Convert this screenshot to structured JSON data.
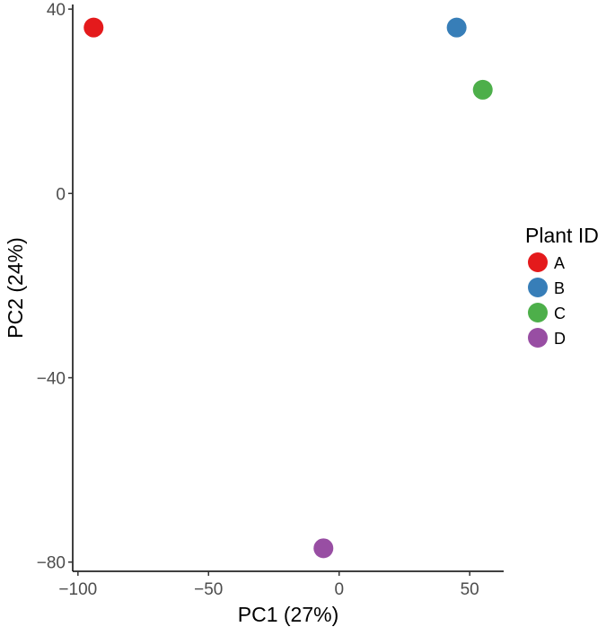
{
  "chart_data": {
    "type": "scatter",
    "xlabel": "PC1 (27%)",
    "ylabel": "PC2 (24%)",
    "xlim": [
      -102,
      63
    ],
    "ylim": [
      -82,
      41
    ],
    "xticks": [
      -100,
      -50,
      0,
      50
    ],
    "xtick_labels": [
      "−100",
      "−50",
      "0",
      "50"
    ],
    "yticks": [
      40,
      0,
      -40,
      -80
    ],
    "ytick_labels": [
      "40",
      "0",
      "−40",
      "−80"
    ],
    "grid": false,
    "legend_position": "right",
    "legend_title": "Plant ID",
    "series": [
      {
        "name": "A",
        "color": "#e41a1c",
        "x": [
          -94
        ],
        "y": [
          36
        ]
      },
      {
        "name": "B",
        "color": "#377eb8",
        "x": [
          45
        ],
        "y": [
          36
        ]
      },
      {
        "name": "C",
        "color": "#4daf4a",
        "x": [
          55
        ],
        "y": [
          22.5
        ]
      },
      {
        "name": "D",
        "color": "#984ea3",
        "x": [
          -6
        ],
        "y": [
          -77
        ]
      }
    ]
  }
}
